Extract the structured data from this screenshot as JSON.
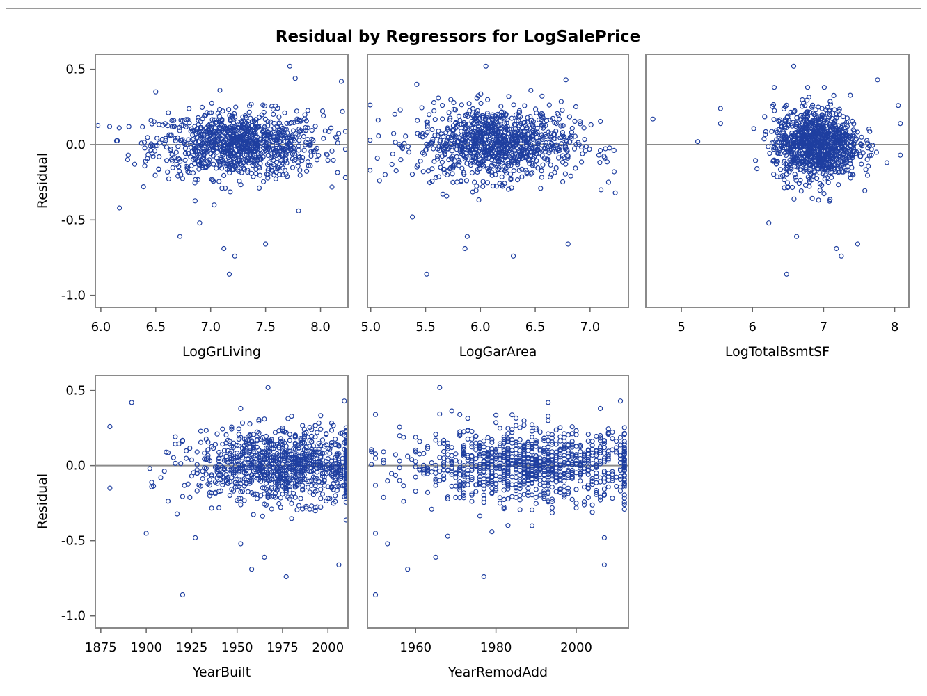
{
  "chart_data": {
    "type": "scatter",
    "title": "Residual by Regressors for LogSalePrice",
    "ylabel": "Residual",
    "ylim": [
      -1.0,
      0.5
    ],
    "yticks": [
      "0.5",
      "0.0",
      "-0.5",
      "-1.0"
    ],
    "reference_line_y": 0,
    "marker": "open circle",
    "colors": {
      "marker": "#1f3fa0",
      "axis": "#8a8a8a"
    },
    "panels": [
      {
        "xlabel": "LogGrLiving",
        "xlim": [
          5.95,
          8.25
        ],
        "xticks": [
          "6.0",
          "6.5",
          "7.0",
          "7.5",
          "8.0"
        ],
        "cluster": {
          "center": [
            7.25,
            0.0
          ],
          "spread": [
            0.38,
            0.11
          ],
          "n": 950
        },
        "outliers": [
          [
            6.08,
            0.12
          ],
          [
            6.17,
            -0.42
          ],
          [
            6.25,
            -0.07
          ],
          [
            6.5,
            0.35
          ],
          [
            6.72,
            -0.61
          ],
          [
            6.9,
            -0.52
          ],
          [
            7.12,
            -0.69
          ],
          [
            7.17,
            -0.86
          ],
          [
            7.22,
            -0.74
          ],
          [
            7.5,
            -0.66
          ],
          [
            7.77,
            0.44
          ],
          [
            7.72,
            0.52
          ],
          [
            8.19,
            0.42
          ],
          [
            8.2,
            0.22
          ],
          [
            7.8,
            -0.44
          ]
        ]
      },
      {
        "xlabel": "LogGarArea",
        "xlim": [
          4.97,
          7.35
        ],
        "xticks": [
          "5.0",
          "5.5",
          "6.0",
          "6.5",
          "7.0"
        ],
        "cluster": {
          "center": [
            6.15,
            0.01
          ],
          "spread": [
            0.36,
            0.12
          ],
          "n": 950
        },
        "outliers": [
          [
            5.08,
            -0.24
          ],
          [
            5.06,
            -0.09
          ],
          [
            5.38,
            -0.48
          ],
          [
            5.42,
            0.4
          ],
          [
            5.51,
            -0.86
          ],
          [
            5.88,
            -0.61
          ],
          [
            5.86,
            -0.69
          ],
          [
            6.05,
            0.52
          ],
          [
            6.3,
            -0.74
          ],
          [
            6.8,
            -0.66
          ],
          [
            6.78,
            0.43
          ],
          [
            7.1,
            -0.3
          ],
          [
            7.23,
            -0.32
          ],
          [
            7.22,
            -0.18
          ],
          [
            7.08,
            -0.07
          ]
        ]
      },
      {
        "xlabel": "LogTotalBsmtSF",
        "xlim": [
          4.5,
          8.2
        ],
        "xticks": [
          "5",
          "6",
          "7",
          "8"
        ],
        "cluster": {
          "center": [
            6.9,
            0.0
          ],
          "spread": [
            0.3,
            0.12
          ],
          "n": 980
        },
        "outliers": [
          [
            4.6,
            0.17
          ],
          [
            5.23,
            0.02
          ],
          [
            5.55,
            0.24
          ],
          [
            5.55,
            0.14
          ],
          [
            6.23,
            -0.52
          ],
          [
            6.48,
            -0.86
          ],
          [
            6.58,
            0.52
          ],
          [
            6.62,
            -0.61
          ],
          [
            7.18,
            -0.69
          ],
          [
            7.25,
            -0.74
          ],
          [
            7.48,
            -0.66
          ],
          [
            7.76,
            0.43
          ],
          [
            8.05,
            0.26
          ],
          [
            8.08,
            -0.07
          ],
          [
            8.08,
            0.14
          ]
        ]
      },
      {
        "xlabel": "YearBuilt",
        "xlim": [
          1872,
          2011
        ],
        "xticks": [
          "1875",
          "1900",
          "1925",
          "1950",
          "1975",
          "2000"
        ],
        "cluster": {
          "center": [
            1975,
            0.0
          ],
          "spread": [
            26,
            0.12
          ],
          "n": 1000
        },
        "outliers": [
          [
            1880,
            0.26
          ],
          [
            1880,
            -0.15
          ],
          [
            1892,
            0.42
          ],
          [
            1900,
            -0.45
          ],
          [
            1920,
            -0.86
          ],
          [
            1927,
            -0.48
          ],
          [
            1952,
            -0.52
          ],
          [
            1958,
            -0.69
          ],
          [
            1965,
            -0.61
          ],
          [
            1967,
            0.52
          ],
          [
            1977,
            -0.74
          ],
          [
            2006,
            -0.66
          ],
          [
            2009,
            0.43
          ],
          [
            1952,
            0.38
          ]
        ]
      },
      {
        "xlabel": "YearRemodAdd",
        "xlim": [
          1948,
          2013
        ],
        "xticks": [
          "1960",
          "1980",
          "2000"
        ],
        "cluster": {
          "center": [
            1988,
            0.0
          ],
          "spread": [
            15,
            0.12
          ],
          "n": 950
        },
        "outliers": [
          [
            1950,
            -0.86
          ],
          [
            1950,
            0.34
          ],
          [
            1950,
            -0.45
          ],
          [
            1953,
            -0.52
          ],
          [
            1958,
            -0.69
          ],
          [
            1965,
            -0.61
          ],
          [
            1966,
            0.52
          ],
          [
            1968,
            -0.47
          ],
          [
            1977,
            -0.74
          ],
          [
            1979,
            -0.44
          ],
          [
            1993,
            0.42
          ],
          [
            2007,
            -0.66
          ],
          [
            2011,
            0.43
          ],
          [
            2007,
            -0.48
          ]
        ]
      }
    ]
  }
}
